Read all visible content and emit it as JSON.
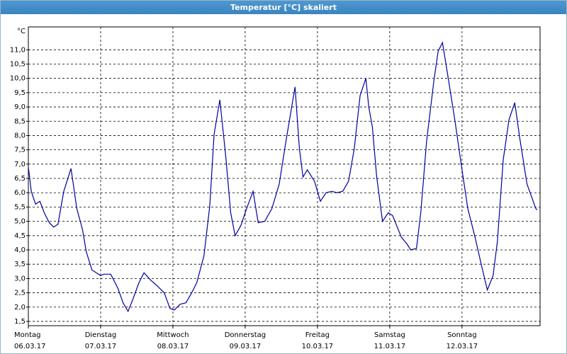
{
  "chart_data": {
    "type": "line",
    "title": "Temperatur [°C] skaliert",
    "ylabel": "°C",
    "color": "#0000a0",
    "grid": true,
    "xlim": [
      0,
      7.08
    ],
    "ylim": [
      1.35,
      11.8
    ],
    "xticks": [
      {
        "value": 0,
        "label": "Montag",
        "date": "06.03.17"
      },
      {
        "value": 1,
        "label": "Dienstag",
        "date": "07.03.17"
      },
      {
        "value": 2,
        "label": "Mittwoch",
        "date": "08.03.17"
      },
      {
        "value": 3,
        "label": "Donnerstag",
        "date": "09.03.17"
      },
      {
        "value": 4,
        "label": "Freitag",
        "date": "10.03.17"
      },
      {
        "value": 5,
        "label": "Samstag",
        "date": "11.03.17"
      },
      {
        "value": 6,
        "label": "Sonntag",
        "date": "12.03.17"
      }
    ],
    "yticks": [
      {
        "value": 1.5,
        "label": "1,5"
      },
      {
        "value": 2,
        "label": "2,0"
      },
      {
        "value": 2.5,
        "label": "2,5"
      },
      {
        "value": 3,
        "label": "3,0"
      },
      {
        "value": 3.5,
        "label": "3,5"
      },
      {
        "value": 4,
        "label": "4,0"
      },
      {
        "value": 4.5,
        "label": "4,5"
      },
      {
        "value": 5,
        "label": "5,0"
      },
      {
        "value": 5.5,
        "label": "5,5"
      },
      {
        "value": 6,
        "label": "6,0"
      },
      {
        "value": 6.5,
        "label": "6,5"
      },
      {
        "value": 7,
        "label": "7,0"
      },
      {
        "value": 7.5,
        "label": "7,5"
      },
      {
        "value": 8,
        "label": "8,0"
      },
      {
        "value": 8.5,
        "label": "8,5"
      },
      {
        "value": 9,
        "label": "9,0"
      },
      {
        "value": 9.5,
        "label": "9,5"
      },
      {
        "value": 10,
        "label": "10,0"
      },
      {
        "value": 10.5,
        "label": "10,5"
      },
      {
        "value": 11,
        "label": "11,0"
      }
    ],
    "x": [
      0,
      0.04,
      0.1,
      0.16,
      0.22,
      0.29,
      0.35,
      0.41,
      0.49,
      0.59,
      0.67,
      0.75,
      0.8,
      0.88,
      1.0,
      1.04,
      1.14,
      1.24,
      1.31,
      1.38,
      1.45,
      1.53,
      1.6,
      1.69,
      1.78,
      1.88,
      1.96,
      2.02,
      2.1,
      2.18,
      2.25,
      2.33,
      2.43,
      2.51,
      2.57,
      2.65,
      2.73,
      2.8,
      2.86,
      2.94,
      3.02,
      3.11,
      3.18,
      3.27,
      3.37,
      3.47,
      3.57,
      3.69,
      3.75,
      3.8,
      3.86,
      3.96,
      4.04,
      4.12,
      4.2,
      4.27,
      4.35,
      4.43,
      4.51,
      4.59,
      4.67,
      4.71,
      4.76,
      4.82,
      4.9,
      4.98,
      5.04,
      5.16,
      5.24,
      5.29,
      5.37,
      5.43,
      5.51,
      5.61,
      5.67,
      5.73,
      5.8,
      5.9,
      6.0,
      6.08,
      6.18,
      6.27,
      6.35,
      6.43,
      6.49,
      6.57,
      6.65,
      6.73,
      6.8,
      6.9,
      7.02,
      7.04
    ],
    "values": [
      6.9,
      6.05,
      5.6,
      5.7,
      5.3,
      4.95,
      4.8,
      4.9,
      6.05,
      6.85,
      5.45,
      4.7,
      3.95,
      3.3,
      3.1,
      3.15,
      3.15,
      2.65,
      2.15,
      1.85,
      2.3,
      2.85,
      3.2,
      2.95,
      2.75,
      2.5,
      1.95,
      1.9,
      2.1,
      2.15,
      2.45,
      2.85,
      3.8,
      5.55,
      8.05,
      9.25,
      7.3,
      5.3,
      4.5,
      4.85,
      5.45,
      6.05,
      4.95,
      5.0,
      5.45,
      6.3,
      7.9,
      9.7,
      7.55,
      6.55,
      6.8,
      6.4,
      5.7,
      6.0,
      6.05,
      6.0,
      6.05,
      6.4,
      7.55,
      9.4,
      10.0,
      9.0,
      8.3,
      6.55,
      5.0,
      5.3,
      5.2,
      4.45,
      4.2,
      4.0,
      4.05,
      5.3,
      7.8,
      9.9,
      10.95,
      11.25,
      10.15,
      8.55,
      6.8,
      5.45,
      4.45,
      3.45,
      2.6,
      3.1,
      4.3,
      7.15,
      8.55,
      9.15,
      7.9,
      6.3,
      5.45,
      5.4
    ]
  }
}
